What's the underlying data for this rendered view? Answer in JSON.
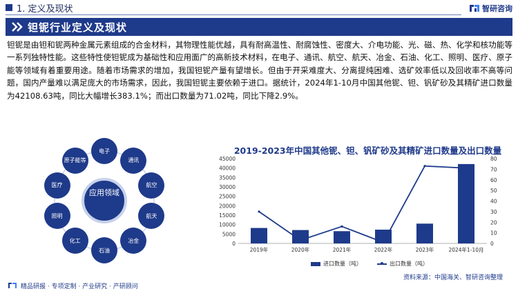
{
  "header": {
    "section_title": "1. 定义及现状",
    "brand_name": "智研咨询"
  },
  "banner": {
    "title": "钽铌行业定义及现状"
  },
  "intro": {
    "paragraph": "钽铌是由钽和铌两种金属元素组成的合金材料，其物理性能优越，具有耐高温性、耐腐蚀性、密度大、介电功能、光、磁、热、化学和核功能等一系列独特性能。这些特性使钽铌成为基础性和应用面广的高新技术材料，在电子、通讯、航空、航天、冶金、石油、化工、照明、医疗、原子能等领域有着重要用途。随着市场需求的增加，我国钽铌产量有望增长。但由于开采难度大、分离提纯困难、选矿效率低以及回收率不高等问题，国内产量难以满足庞大的市场需求，因此，我国钽铌主要依赖于进口。据统计，2024年1-10月中国其他铌、钽、钒矿砂及其精矿进口数量为42108.63吨，同比大幅增长383.1%；而出口数量为71.02吨，同比下降2.9%。"
  },
  "diagram": {
    "hub": "应用领域",
    "spokes": [
      "电子",
      "通讯",
      "航空",
      "航天",
      "冶金",
      "石油",
      "化工",
      "照明",
      "医疗",
      "原子能等"
    ]
  },
  "colors": {
    "primary": "#1e3a8a",
    "hub_ring": "#c7d2ea"
  },
  "chart_data": {
    "type": "bar",
    "title": "2019-2023年中国其他铌、钽、钒矿砂及其精矿进口数量及出口数量",
    "categories": [
      "2019年",
      "2020年",
      "2021年",
      "2022年",
      "2023年",
      "2024年1-10月"
    ],
    "series": [
      {
        "name": "进口数量（吨）",
        "type": "bar",
        "axis": "left",
        "values": [
          8200,
          7100,
          6500,
          7300,
          10500,
          42108.63
        ]
      },
      {
        "name": "出口数量（吨）",
        "type": "line",
        "axis": "right",
        "values": [
          30,
          3,
          16,
          1,
          73,
          71.02
        ]
      }
    ],
    "ylim_left": [
      0,
      45000
    ],
    "yticks_left": [
      0,
      5000,
      10000,
      15000,
      20000,
      25000,
      30000,
      35000,
      40000,
      45000
    ],
    "ylim_right": [
      0,
      80
    ],
    "yticks_right": [
      0,
      10,
      20,
      30,
      40,
      50,
      60,
      70,
      80
    ],
    "grid": false,
    "legend": "bottom"
  },
  "source": {
    "text": "资料来源：中国海关、智研咨询整理"
  },
  "footer": {
    "text": "精品研报 · 专项定制 · 产业研究 · 产研顾问"
  }
}
